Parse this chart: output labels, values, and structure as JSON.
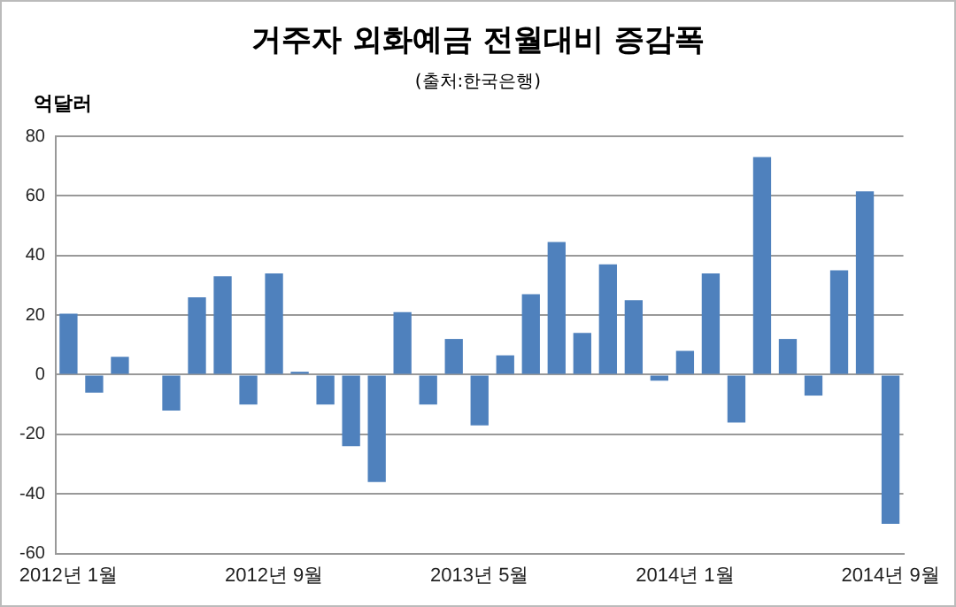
{
  "chart_data": {
    "type": "bar",
    "title": "거주자 외화예금 전월대비 증감폭",
    "subtitle": "(출처:한국은행)",
    "ylabel": "억달러",
    "categories": [
      "2012년 1월",
      null,
      null,
      null,
      null,
      null,
      null,
      null,
      "2012년 9월",
      null,
      null,
      null,
      null,
      null,
      null,
      null,
      "2013년 5월",
      null,
      null,
      null,
      null,
      null,
      null,
      null,
      "2014년 1월",
      null,
      null,
      null,
      null,
      null,
      null,
      null,
      "2014년 9월"
    ],
    "values": [
      20.5,
      -6,
      6,
      0,
      -12,
      26,
      33,
      -10,
      34,
      1,
      -10,
      -24,
      -36,
      21,
      -10,
      12,
      -17,
      6.5,
      27,
      44.5,
      14,
      37,
      25,
      -2,
      8,
      34,
      -16,
      73,
      12,
      -7,
      35,
      61.5,
      -50
    ],
    "color": "#4f81bd",
    "ylim": [
      -60,
      80
    ],
    "yticks": [
      -60,
      -40,
      -20,
      0,
      20,
      40,
      60,
      80
    ],
    "grid": "y"
  }
}
